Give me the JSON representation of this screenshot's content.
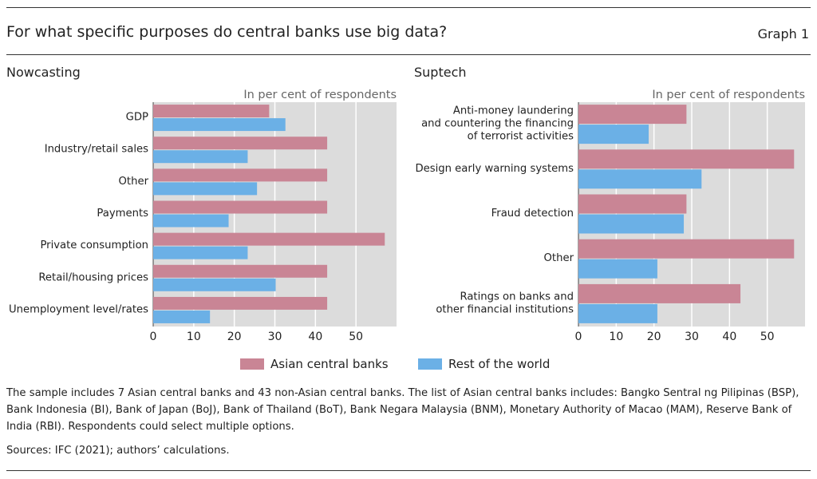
{
  "header": {
    "title": "For what specific purposes do central banks use big data?",
    "graph_label": "Graph 1"
  },
  "legend": {
    "asian": "Asian central banks",
    "rest": "Rest of the world"
  },
  "colors": {
    "asian": "#c98595",
    "rest": "#6bb0e6",
    "grid_bg": "#dcdcdc"
  },
  "footnote": "The sample includes 7 Asian central banks and 43 non-Asian central banks. The list of Asian central banks includes: Bangko Sentral ng Pilipinas (BSP), Bank Indonesia (BI), Bank of Japan (BoJ), Bank of Thailand (BoT), Bank Negara Malaysia (BNM), Monetary Authority of Macao (MAM), Reserve Bank of India (RBI). Respondents could select multiple options.",
  "sources": "Sources: IFC (2021); authors’ calculations.",
  "chart_data": [
    {
      "type": "bar",
      "orientation": "horizontal",
      "title": "Nowcasting",
      "unit_label": "In per cent of respondents",
      "categories": [
        [
          "GDP"
        ],
        [
          "Industry/retail sales"
        ],
        [
          "Other"
        ],
        [
          "Payments"
        ],
        [
          "Private consumption"
        ],
        [
          "Retail/housing prices"
        ],
        [
          "Unemployment level/rates"
        ]
      ],
      "series": [
        {
          "name": "Asian central banks",
          "values": [
            28.6,
            42.9,
            42.9,
            42.9,
            57.1,
            42.9,
            42.9
          ]
        },
        {
          "name": "Rest of the world",
          "values": [
            32.6,
            23.3,
            25.6,
            18.6,
            23.3,
            30.2,
            14.0
          ]
        }
      ],
      "xlim": [
        0,
        60
      ],
      "xticks": [
        "0",
        "10",
        "20",
        "30",
        "40",
        "50"
      ],
      "grid": true
    },
    {
      "type": "bar",
      "orientation": "horizontal",
      "title": "Suptech",
      "unit_label": "In per cent of respondents",
      "categories": [
        [
          "Anti-money laundering",
          "and countering the financing",
          "of terrorist activities"
        ],
        [
          "Design early warning systems"
        ],
        [
          "Fraud detection"
        ],
        [
          "Other"
        ],
        [
          "Ratings on banks and",
          "other financial institutions"
        ]
      ],
      "series": [
        {
          "name": "Asian central banks",
          "values": [
            28.6,
            57.1,
            28.6,
            57.1,
            42.9
          ]
        },
        {
          "name": "Rest of the world",
          "values": [
            18.6,
            32.6,
            27.9,
            20.9,
            20.9
          ]
        }
      ],
      "xlim": [
        0,
        60
      ],
      "xticks": [
        "0",
        "10",
        "20",
        "30",
        "40",
        "50"
      ],
      "grid": true
    }
  ]
}
